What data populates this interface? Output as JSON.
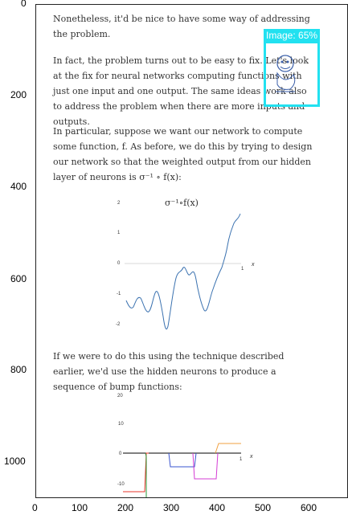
{
  "axes": {
    "y_ticks": [
      "0",
      "200",
      "400",
      "600",
      "800",
      "1000"
    ],
    "x_ticks": [
      "0",
      "100",
      "200",
      "300",
      "400",
      "500",
      "600"
    ]
  },
  "document": {
    "p1": "Nonetheless, it'd be nice to have some way of addressing the problem.",
    "p2": "In fact, the problem turns out to be easy to fix. Let's look at the fix for neural networks computing functions with just one input and one output. The same ideas work also to address the problem when there are more inputs and outputs.",
    "p3": "In particular, suppose we want our network to compute some function, f. As before, we do this by trying to design our network so that the weighted output from our hidden layer of neurons is σ⁻¹ ∘ f(x):",
    "p4": "If we were to do this using the technique described earlier, we'd use the hidden neurons to produce a sequence of bump functions:"
  },
  "figure1": {
    "title": "σ⁻¹∘f(x)",
    "y_labels": [
      "2",
      "1",
      "0",
      "-1",
      "-2"
    ],
    "x_label_1": "1",
    "x_var": "x"
  },
  "figure2": {
    "y_labels": [
      "20",
      "10",
      "0",
      "-10"
    ],
    "x_label_1": "1",
    "x_var": "x"
  },
  "detection": {
    "label": "Image: 65%",
    "color": "#22e1f0"
  }
}
